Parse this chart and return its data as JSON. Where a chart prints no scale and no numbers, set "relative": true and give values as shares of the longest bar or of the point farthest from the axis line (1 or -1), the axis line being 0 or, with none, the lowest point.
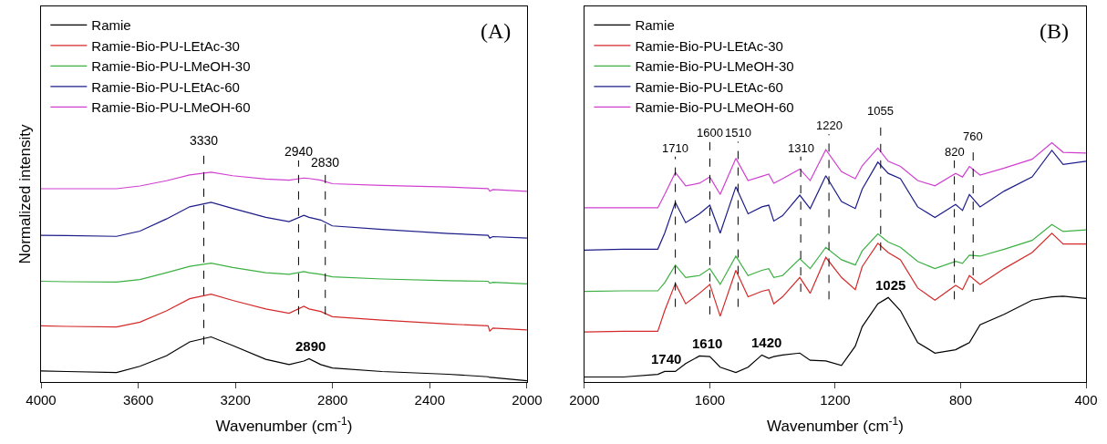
{
  "chart_data": [
    {
      "type": "line",
      "title": "(A)",
      "xlabel": "Wavenumber (cm$^{-1}$)",
      "ylabel": "Normalized intensity",
      "relative": true,
      "x": [
        4000,
        3894,
        3689,
        3593,
        3484,
        3388,
        3300,
        3211,
        3075,
        2979,
        2918,
        2897,
        2849,
        2801,
        2597,
        2324,
        2160,
        2153,
        2140,
        2000
      ],
      "xlim": [
        4000,
        2000
      ],
      "xticks": [
        4000,
        3600,
        3200,
        2800,
        2400,
        2000
      ],
      "legend": "top left",
      "marker": "none",
      "line_style": "solid",
      "series": [
        {
          "name": "Ramie",
          "color": "#000000",
          "values": [
            0.053,
            0.05,
            0.045,
            0.075,
            0.125,
            0.191,
            0.215,
            0.174,
            0.108,
            0.083,
            0.1,
            0.111,
            0.083,
            0.067,
            0.05,
            0.037,
            0.025,
            0.022,
            0.021,
            0.006
          ]
        },
        {
          "name": "Ramie-Bio-PU-LEtAc-30",
          "color": "#d42a2a",
          "values": [
            0.268,
            0.265,
            0.262,
            0.285,
            0.339,
            0.397,
            0.419,
            0.389,
            0.348,
            0.328,
            0.361,
            0.348,
            0.336,
            0.311,
            0.295,
            0.276,
            0.268,
            0.243,
            0.257,
            0.248
          ]
        },
        {
          "name": "Ramie-Bio-PU-LMeOH-30",
          "color": "#3cb043",
          "values": [
            0.48,
            0.478,
            0.476,
            0.488,
            0.521,
            0.551,
            0.566,
            0.546,
            0.521,
            0.513,
            0.526,
            0.521,
            0.513,
            0.501,
            0.491,
            0.483,
            0.48,
            0.471,
            0.475,
            0.468
          ]
        },
        {
          "name": "Ramie-Bio-PU-LEtAc-60",
          "color": "#1c1c8a",
          "values": [
            0.699,
            0.698,
            0.694,
            0.719,
            0.777,
            0.835,
            0.856,
            0.827,
            0.785,
            0.764,
            0.794,
            0.785,
            0.772,
            0.744,
            0.727,
            0.708,
            0.699,
            0.686,
            0.693,
            0.686
          ]
        },
        {
          "name": "Ramie-Bio-PU-LMeOH-60",
          "color": "#d040d0",
          "values": [
            0.921,
            0.921,
            0.921,
            0.934,
            0.959,
            0.987,
            1.0,
            0.983,
            0.967,
            0.962,
            0.972,
            0.97,
            0.962,
            0.945,
            0.937,
            0.929,
            0.922,
            0.909,
            0.917,
            0.909
          ]
        }
      ],
      "ref_lines": [
        {
          "axis": "x",
          "value": 3330,
          "label": "3330",
          "color": "#000000",
          "line_style": "dashed"
        },
        {
          "axis": "x",
          "value": 2940,
          "label": "2940",
          "color": "#000000",
          "line_style": "dashed"
        },
        {
          "axis": "x",
          "value": 2830,
          "label": "2830",
          "color": "#000000",
          "line_style": "dashed"
        }
      ],
      "annotations": [
        {
          "text": "2890",
          "x": 2890,
          "y": 0.111
        }
      ]
    },
    {
      "type": "line",
      "title": "(B)",
      "xlabel": "Wavenumber (cm$^{-1}$)",
      "relative": true,
      "x": [
        2000,
        1876,
        1766,
        1744,
        1710,
        1677,
        1633,
        1600,
        1567,
        1517,
        1478,
        1434,
        1412,
        1396,
        1368,
        1313,
        1280,
        1230,
        1180,
        1136,
        1114,
        1064,
        1031,
        992,
        937,
        882,
        816,
        794,
        772,
        738,
        661,
        572,
        509,
        473,
        400
      ],
      "xlim": [
        2000,
        400
      ],
      "xticks": [
        2000,
        1600,
        1200,
        800,
        400
      ],
      "legend": "top left",
      "marker": "none",
      "line_style": "solid",
      "series": [
        {
          "name": "Ramie",
          "color": "#000000",
          "values": [
            0.021,
            0.021,
            0.032,
            0.044,
            0.044,
            0.077,
            0.109,
            0.106,
            0.062,
            0.04,
            0.062,
            0.113,
            0.099,
            0.106,
            0.113,
            0.121,
            0.091,
            0.088,
            0.069,
            0.15,
            0.231,
            0.327,
            0.353,
            0.298,
            0.165,
            0.121,
            0.135,
            0.15,
            0.165,
            0.239,
            0.283,
            0.342,
            0.356,
            0.359,
            0.349
          ]
        },
        {
          "name": "Ramie-Bio-PU-LEtAc-30",
          "color": "#d42a2a",
          "values": [
            0.209,
            0.212,
            0.212,
            0.298,
            0.412,
            0.327,
            0.371,
            0.408,
            0.275,
            0.467,
            0.356,
            0.379,
            0.386,
            0.327,
            0.356,
            0.437,
            0.371,
            0.521,
            0.437,
            0.386,
            0.482,
            0.58,
            0.541,
            0.511,
            0.393,
            0.342,
            0.404,
            0.386,
            0.445,
            0.408,
            0.474,
            0.541,
            0.622,
            0.577,
            0.577
          ]
        },
        {
          "name": "Ramie-Bio-PU-LMeOH-30",
          "color": "#3cb043",
          "values": [
            0.379,
            0.381,
            0.381,
            0.415,
            0.489,
            0.437,
            0.445,
            0.474,
            0.408,
            0.526,
            0.445,
            0.467,
            0.474,
            0.437,
            0.445,
            0.515,
            0.474,
            0.563,
            0.511,
            0.489,
            0.548,
            0.619,
            0.585,
            0.563,
            0.504,
            0.474,
            0.504,
            0.496,
            0.53,
            0.526,
            0.555,
            0.592,
            0.658,
            0.629,
            0.636
          ]
        },
        {
          "name": "Ramie-Bio-PU-LEtAc-60",
          "color": "#1c1c8a",
          "values": [
            0.551,
            0.555,
            0.555,
            0.622,
            0.751,
            0.666,
            0.703,
            0.739,
            0.622,
            0.816,
            0.703,
            0.732,
            0.739,
            0.673,
            0.695,
            0.781,
            0.725,
            0.862,
            0.754,
            0.725,
            0.806,
            0.919,
            0.872,
            0.85,
            0.732,
            0.688,
            0.742,
            0.717,
            0.784,
            0.732,
            0.798,
            0.857,
            0.968,
            0.909,
            0.923
          ]
        },
        {
          "name": "Ramie-Bio-PU-LMeOH-60",
          "color": "#d040d0",
          "values": [
            0.728,
            0.728,
            0.728,
            0.784,
            0.876,
            0.82,
            0.831,
            0.857,
            0.784,
            0.935,
            0.842,
            0.86,
            0.869,
            0.831,
            0.85,
            0.89,
            0.842,
            0.971,
            0.879,
            0.85,
            0.904,
            0.978,
            0.923,
            0.901,
            0.842,
            0.82,
            0.872,
            0.857,
            0.901,
            0.865,
            0.894,
            0.931,
            1.0,
            0.96,
            0.957
          ]
        }
      ],
      "ref_lines": [
        {
          "axis": "x",
          "value": 1710,
          "label": "1710",
          "color": "#000000",
          "line_style": "dashed"
        },
        {
          "axis": "x",
          "value": 1600,
          "label": "1600",
          "color": "#000000",
          "line_style": "dashed"
        },
        {
          "axis": "x",
          "value": 1510,
          "label": "1510",
          "color": "#000000",
          "line_style": "dashed"
        },
        {
          "axis": "x",
          "value": 1310,
          "label": "1310",
          "color": "#000000",
          "line_style": "dashed"
        },
        {
          "axis": "x",
          "value": 1220,
          "label": "1220",
          "color": "#000000",
          "line_style": "dashed"
        },
        {
          "axis": "x",
          "value": 1055,
          "label": "1055",
          "color": "#000000",
          "line_style": "dashed"
        },
        {
          "axis": "x",
          "value": 820,
          "label": "820",
          "color": "#000000",
          "line_style": "dashed"
        },
        {
          "axis": "x",
          "value": 760,
          "label": "760",
          "color": "#000000",
          "line_style": "dashed"
        }
      ],
      "annotations": [
        {
          "text": "1740",
          "x": 1740,
          "y": 0.044
        },
        {
          "text": "1610",
          "x": 1610,
          "y": 0.109
        },
        {
          "text": "1420",
          "x": 1420,
          "y": 0.113
        },
        {
          "text": "1025",
          "x": 1025,
          "y": 0.353
        }
      ]
    }
  ]
}
